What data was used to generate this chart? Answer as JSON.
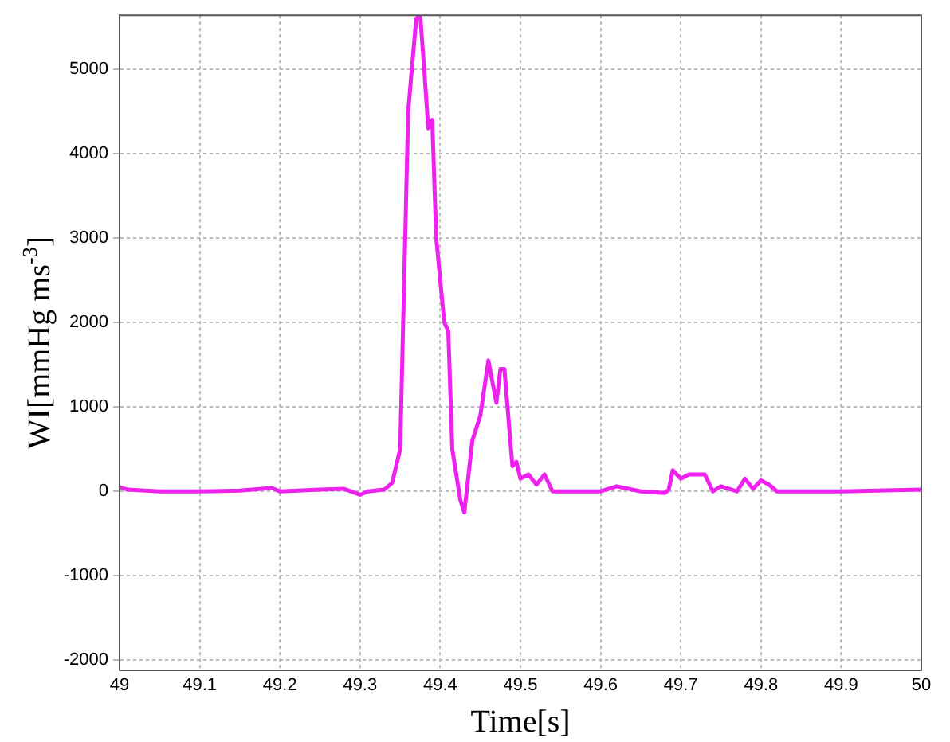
{
  "chart_data": {
    "type": "line",
    "xlabel": "Time[s]",
    "ylabel": "WI[mmHg ms$^{-3}$]",
    "xlim": [
      49,
      50
    ],
    "xticks": [
      49,
      49.1,
      49.2,
      49.3,
      49.4,
      49.5,
      49.6,
      49.7,
      49.8,
      49.9,
      50
    ],
    "ylim": [
      -2120,
      5640
    ],
    "yticks": [
      -2000,
      -1000,
      0,
      1000,
      2000,
      3000,
      4000,
      5000
    ],
    "grid": true,
    "legend": false,
    "marker": "none",
    "line_style": "solid",
    "series": [
      {
        "color": "#ee22ee",
        "x": [
          49.0,
          49.01,
          49.05,
          49.1,
          49.15,
          49.19,
          49.2,
          49.25,
          49.28,
          49.3,
          49.31,
          49.33,
          49.34,
          49.35,
          49.355,
          49.36,
          49.37,
          49.375,
          49.38,
          49.385,
          49.39,
          49.395,
          49.405,
          49.41,
          49.415,
          49.425,
          49.43,
          49.44,
          49.45,
          49.46,
          49.47,
          49.475,
          49.48,
          49.49,
          49.495,
          49.5,
          49.51,
          49.52,
          49.53,
          49.54,
          49.6,
          49.62,
          49.65,
          49.68,
          49.685,
          49.69,
          49.7,
          49.71,
          49.73,
          49.74,
          49.75,
          49.77,
          49.78,
          49.79,
          49.8,
          49.81,
          49.82,
          49.9,
          50.0
        ],
        "values": [
          50,
          20,
          0,
          0,
          10,
          40,
          0,
          20,
          30,
          -40,
          0,
          20,
          100,
          500,
          2500,
          4500,
          5600,
          5640,
          5000,
          4300,
          4400,
          3000,
          2000,
          1900,
          500,
          -100,
          -250,
          600,
          900,
          1550,
          1050,
          1450,
          1450,
          300,
          350,
          150,
          200,
          80,
          200,
          0,
          0,
          60,
          0,
          -20,
          20,
          250,
          150,
          200,
          200,
          0,
          60,
          0,
          150,
          30,
          130,
          80,
          0,
          0,
          20
        ]
      }
    ]
  }
}
